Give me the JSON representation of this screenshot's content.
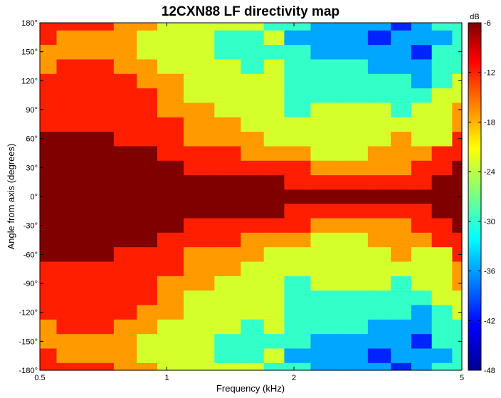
{
  "chart_data": {
    "type": "heatmap",
    "title": "12CXN88 LF directivity map",
    "xlabel": "Frequency (kHz)",
    "ylabel": "Angle from axis (degrees)",
    "x_scale": "log",
    "xlim": [
      0.5,
      5
    ],
    "ylim": [
      -180,
      180
    ],
    "x_ticks": [
      0.5,
      1,
      2,
      5
    ],
    "x_tick_labels": [
      "0.5",
      "1",
      "2",
      "5"
    ],
    "y_ticks": [
      180,
      150,
      120,
      90,
      60,
      30,
      0,
      -30,
      -60,
      -90,
      -120,
      -150,
      -180
    ],
    "y_tick_labels": [
      "180°",
      "150°",
      "120°",
      "90°",
      "60°",
      "30°",
      "0°",
      "-30°",
      "-60°",
      "-90°",
      "-120°",
      "-150°",
      "-180°"
    ],
    "colorbar": {
      "unit": "dB",
      "range": [
        -48,
        -6
      ],
      "ticks": [
        -6,
        -12,
        -18,
        -24,
        -30,
        -36,
        -42,
        -48
      ],
      "tick_labels": [
        "-6",
        "-12",
        "-18",
        "-24",
        "-30",
        "-36",
        "-42",
        "-48"
      ]
    },
    "level_colors": {
      "-6": "#800000",
      "-12": "#ff1f00",
      "-18": "#ff9a00",
      "-24": "#d4ff2b",
      "-30": "#33ffc9",
      "-36": "#00a6ff",
      "-42": "#0024ff",
      "-48": "#00008f"
    },
    "frequencies_khz": [
      0.5,
      0.6,
      0.7,
      0.8,
      0.9,
      1.0,
      1.2,
      1.4,
      1.6,
      1.8,
      2.0,
      2.4,
      2.8,
      3.2,
      3.6,
      4.0,
      4.5,
      5.0
    ],
    "angles_deg": [
      0,
      15,
      30,
      45,
      60,
      75,
      90,
      105,
      120,
      135,
      150,
      165,
      180
    ],
    "level_db_by_angle": [
      [
        -6,
        -6,
        -6,
        -6,
        -6,
        -6,
        -6,
        -6,
        -6,
        -6,
        -6,
        -6,
        -6,
        -6,
        -6,
        -6,
        -6,
        -6
      ],
      [
        -6,
        -6,
        -6,
        -6,
        -6,
        -6,
        -6,
        -6,
        -6,
        -6,
        -12,
        -12,
        -12,
        -12,
        -12,
        -12,
        -6,
        -6
      ],
      [
        -6,
        -6,
        -6,
        -6,
        -6,
        -6,
        -12,
        -12,
        -12,
        -12,
        -12,
        -18,
        -18,
        -18,
        -18,
        -12,
        -12,
        -6
      ],
      [
        -6,
        -6,
        -6,
        -6,
        -6,
        -12,
        -12,
        -12,
        -18,
        -18,
        -18,
        -24,
        -24,
        -18,
        -18,
        -18,
        -12,
        -12
      ],
      [
        -6,
        -6,
        -6,
        -12,
        -12,
        -12,
        -18,
        -18,
        -18,
        -24,
        -24,
        -24,
        -24,
        -24,
        -18,
        -24,
        -24,
        -12
      ],
      [
        -12,
        -12,
        -12,
        -12,
        -12,
        -12,
        -18,
        -18,
        -24,
        -24,
        -24,
        -24,
        -24,
        -24,
        -24,
        -24,
        -24,
        -18
      ],
      [
        -12,
        -12,
        -12,
        -12,
        -12,
        -18,
        -18,
        -24,
        -24,
        -24,
        -30,
        -24,
        -24,
        -24,
        -30,
        -24,
        -24,
        -18
      ],
      [
        -12,
        -12,
        -12,
        -12,
        -12,
        -18,
        -24,
        -24,
        -24,
        -24,
        -30,
        -30,
        -30,
        -30,
        -30,
        -30,
        -24,
        -24
      ],
      [
        -12,
        -12,
        -12,
        -12,
        -18,
        -18,
        -24,
        -24,
        -24,
        -24,
        -30,
        -30,
        -30,
        -30,
        -30,
        -36,
        -30,
        -24
      ],
      [
        -18,
        -12,
        -12,
        -18,
        -18,
        -24,
        -24,
        -24,
        -30,
        -24,
        -30,
        -30,
        -30,
        -36,
        -36,
        -36,
        -30,
        -30
      ],
      [
        -18,
        -18,
        -18,
        -18,
        -24,
        -24,
        -24,
        -30,
        -30,
        -30,
        -30,
        -36,
        -36,
        -36,
        -36,
        -42,
        -30,
        -30
      ],
      [
        -12,
        -18,
        -18,
        -18,
        -24,
        -24,
        -24,
        -30,
        -30,
        -24,
        -36,
        -36,
        -36,
        -42,
        -36,
        -36,
        -36,
        -30
      ],
      [
        -12,
        -12,
        -12,
        -18,
        -18,
        -24,
        -24,
        -24,
        -24,
        -30,
        -30,
        -36,
        -36,
        -36,
        -42,
        -36,
        -30,
        -30
      ]
    ]
  }
}
